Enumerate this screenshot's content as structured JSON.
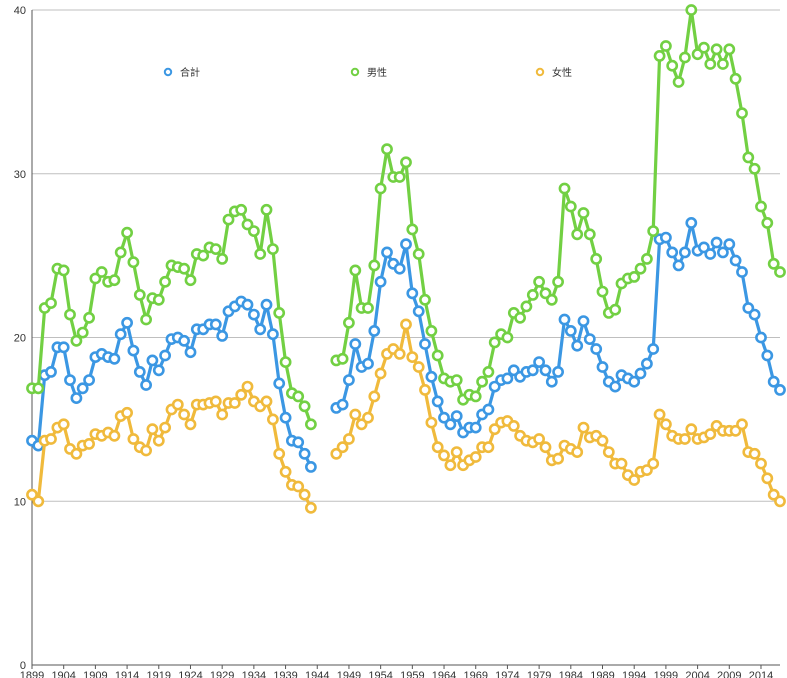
{
  "chart_data": {
    "type": "line",
    "title": "",
    "xlabel": "",
    "ylabel": "",
    "x_range": [
      1899,
      2017
    ],
    "ylim": [
      0,
      40
    ],
    "yticks": [
      0,
      10,
      20,
      30,
      40
    ],
    "xticks": [
      1899,
      1904,
      1909,
      1914,
      1919,
      1924,
      1929,
      1934,
      1939,
      1944,
      1949,
      1954,
      1959,
      1964,
      1969,
      1974,
      1979,
      1984,
      1989,
      1994,
      1999,
      2004,
      2009,
      2014
    ],
    "grid": true,
    "legend_position": "top",
    "series": [
      {
        "name": "合計",
        "color": "#3b97e3",
        "segments": [
          {
            "start": 1899,
            "values": [
              13.7,
              13.4,
              17.7,
              17.9,
              19.4,
              19.4,
              17.4,
              16.3,
              16.9,
              17.4,
              18.8,
              19.0,
              18.8,
              18.7,
              20.2,
              20.9,
              19.2,
              17.9,
              17.1,
              18.6,
              18.0,
              18.9,
              19.9,
              20.0,
              19.8,
              19.1,
              20.5,
              20.5,
              20.8,
              20.8,
              20.1,
              21.6,
              21.9,
              22.2,
              22.0,
              21.4,
              20.5,
              22.0,
              20.2,
              17.2,
              15.1,
              13.7,
              13.6,
              12.9,
              12.1
            ]
          },
          {
            "start": 1947,
            "values": [
              15.7,
              15.9,
              17.4,
              19.6,
              18.2,
              18.4,
              20.4,
              23.4,
              25.2,
              24.5,
              24.2,
              25.7,
              22.7,
              21.6,
              19.6,
              17.6,
              16.1,
              15.1,
              14.7,
              15.2,
              14.2,
              14.5,
              14.5,
              15.3,
              15.6,
              17.0,
              17.4,
              17.5,
              18.0,
              17.6,
              17.9,
              18.0,
              18.5,
              18.0,
              17.3,
              17.9,
              21.1,
              20.4,
              19.5,
              21.0,
              19.9,
              19.3,
              18.2,
              17.3,
              17.0,
              17.7,
              17.5,
              17.3,
              17.8,
              18.4,
              19.3,
              26.0,
              26.1,
              25.2,
              24.4,
              25.2,
              27.0,
              25.3,
              25.5,
              25.1,
              25.8,
              25.2,
              25.7,
              24.7,
              24.0,
              21.8,
              21.4,
              20.0,
              18.9,
              17.3,
              16.8
            ]
          }
        ]
      },
      {
        "name": "男性",
        "color": "#72d043",
        "segments": [
          {
            "start": 1899,
            "values": [
              16.9,
              16.9,
              21.8,
              22.1,
              24.2,
              24.1,
              21.4,
              19.8,
              20.3,
              21.2,
              23.6,
              24.0,
              23.4,
              23.5,
              25.2,
              26.4,
              24.6,
              22.6,
              21.1,
              22.4,
              22.3,
              23.4,
              24.4,
              24.3,
              24.2,
              23.5,
              25.1,
              25.0,
              25.5,
              25.4,
              24.8,
              27.2,
              27.7,
              27.8,
              26.9,
              26.5,
              25.1,
              27.8,
              25.4,
              21.5,
              18.5,
              16.6,
              16.4,
              15.8,
              14.7
            ]
          },
          {
            "start": 1947,
            "values": [
              18.6,
              18.7,
              20.9,
              24.1,
              21.8,
              21.8,
              24.4,
              29.1,
              31.5,
              29.8,
              29.8,
              30.7,
              26.6,
              25.1,
              22.3,
              20.4,
              18.9,
              17.5,
              17.3,
              17.4,
              16.2,
              16.5,
              16.4,
              17.3,
              17.9,
              19.7,
              20.2,
              20.0,
              21.5,
              21.2,
              21.9,
              22.6,
              23.4,
              22.7,
              22.3,
              23.4,
              29.1,
              28.0,
              26.3,
              27.6,
              26.3,
              24.8,
              22.8,
              21.5,
              21.7,
              23.3,
              23.6,
              23.7,
              24.2,
              24.8,
              26.5,
              37.2,
              37.8,
              36.6,
              35.6,
              37.1,
              40.0,
              37.3,
              37.7,
              36.7,
              37.6,
              36.7,
              37.6,
              35.8,
              33.7,
              31.0,
              30.3,
              28.0,
              27.0,
              24.5,
              24.0
            ]
          }
        ]
      },
      {
        "name": "女性",
        "color": "#f0ba3c",
        "segments": [
          {
            "start": 1899,
            "values": [
              10.4,
              10.0,
              13.7,
              13.8,
              14.5,
              14.7,
              13.2,
              12.9,
              13.4,
              13.5,
              14.1,
              14.0,
              14.2,
              14.0,
              15.2,
              15.4,
              13.8,
              13.3,
              13.1,
              14.4,
              13.7,
              14.5,
              15.6,
              15.9,
              15.3,
              14.7,
              15.9,
              15.9,
              16.0,
              16.1,
              15.3,
              16.0,
              16.0,
              16.5,
              17.0,
              16.1,
              15.8,
              16.1,
              15.0,
              12.9,
              11.8,
              11.0,
              10.9,
              10.4,
              9.6
            ]
          },
          {
            "start": 1947,
            "values": [
              12.9,
              13.3,
              13.8,
              15.3,
              14.7,
              15.1,
              16.4,
              17.8,
              19.0,
              19.3,
              19.0,
              20.8,
              18.8,
              18.2,
              16.8,
              14.8,
              13.3,
              12.8,
              12.2,
              13.0,
              12.2,
              12.5,
              12.7,
              13.3,
              13.3,
              14.4,
              14.8,
              14.9,
              14.6,
              14.0,
              13.7,
              13.6,
              13.8,
              13.3,
              12.5,
              12.6,
              13.4,
              13.2,
              13.0,
              14.5,
              13.9,
              14.0,
              13.7,
              13.0,
              12.3,
              12.3,
              11.6,
              11.3,
              11.8,
              11.9,
              12.3,
              15.3,
              14.7,
              14.0,
              13.8,
              13.8,
              14.4,
              13.8,
              13.9,
              14.1,
              14.6,
              14.3,
              14.3,
              14.3,
              14.7,
              13.0,
              12.9,
              12.3,
              11.4,
              10.4,
              10.0
            ]
          }
        ]
      }
    ]
  }
}
